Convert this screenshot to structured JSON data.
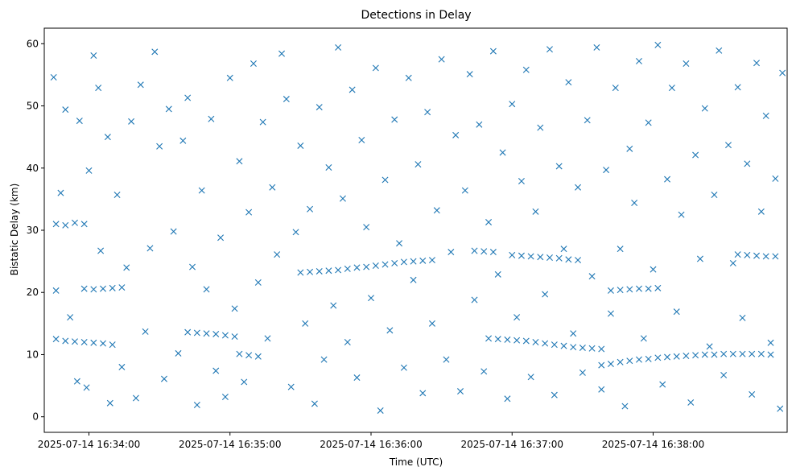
{
  "chart_data": {
    "type": "scatter",
    "title": "Detections in Delay",
    "xlabel": "Time (UTC)",
    "ylabel": "Bistatic Delay (km)",
    "x_ticks": [
      "2025-07-14 16:34:00",
      "2025-07-14 16:35:00",
      "2025-07-14 16:36:00",
      "2025-07-14 16:37:00",
      "2025-07-14 16:38:00"
    ],
    "x_range": [
      "2025-07-14 16:33:41",
      "2025-07-14 16:38:57"
    ],
    "y_ticks": [
      0,
      10,
      20,
      30,
      40,
      50,
      60
    ],
    "ylim": [
      -2.5,
      62.5
    ],
    "grid": false,
    "marker": "x",
    "color": "#1f77b4",
    "series": [
      {
        "points": [
          [
            "16:33:46",
            12.5
          ],
          [
            "16:33:50",
            12.2
          ],
          [
            "16:33:54",
            12.1
          ],
          [
            "16:33:58",
            12.0
          ],
          [
            "16:34:02",
            11.9
          ],
          [
            "16:34:06",
            11.8
          ],
          [
            "16:34:10",
            11.6
          ],
          [
            "16:34:42",
            13.6
          ],
          [
            "16:34:46",
            13.5
          ],
          [
            "16:34:50",
            13.4
          ],
          [
            "16:34:54",
            13.3
          ],
          [
            "16:34:58",
            13.1
          ],
          [
            "16:35:02",
            12.9
          ],
          [
            "16:35:04",
            10.1
          ],
          [
            "16:35:08",
            9.9
          ],
          [
            "16:35:12",
            9.7
          ],
          [
            "16:35:30",
            23.2
          ],
          [
            "16:35:34",
            23.3
          ],
          [
            "16:35:38",
            23.4
          ],
          [
            "16:35:42",
            23.5
          ],
          [
            "16:35:46",
            23.6
          ],
          [
            "16:35:50",
            23.8
          ],
          [
            "16:35:54",
            24.0
          ],
          [
            "16:35:58",
            24.1
          ],
          [
            "16:36:02",
            24.3
          ],
          [
            "16:36:06",
            24.5
          ],
          [
            "16:36:10",
            24.7
          ],
          [
            "16:36:14",
            24.9
          ],
          [
            "16:36:18",
            25.0
          ],
          [
            "16:36:22",
            25.1
          ],
          [
            "16:36:26",
            25.2
          ],
          [
            "16:36:44",
            26.7
          ],
          [
            "16:36:48",
            26.6
          ],
          [
            "16:36:52",
            26.5
          ],
          [
            "16:36:50",
            12.6
          ],
          [
            "16:36:54",
            12.5
          ],
          [
            "16:36:58",
            12.4
          ],
          [
            "16:37:02",
            12.3
          ],
          [
            "16:37:06",
            12.2
          ],
          [
            "16:37:10",
            12.0
          ],
          [
            "16:37:14",
            11.8
          ],
          [
            "16:37:18",
            11.6
          ],
          [
            "16:37:22",
            11.4
          ],
          [
            "16:37:26",
            11.2
          ],
          [
            "16:37:30",
            11.1
          ],
          [
            "16:37:34",
            11.0
          ],
          [
            "16:37:38",
            10.9
          ],
          [
            "16:37:00",
            26.0
          ],
          [
            "16:37:04",
            25.9
          ],
          [
            "16:37:08",
            25.8
          ],
          [
            "16:37:12",
            25.7
          ],
          [
            "16:37:16",
            25.6
          ],
          [
            "16:37:20",
            25.5
          ],
          [
            "16:37:24",
            25.3
          ],
          [
            "16:37:28",
            25.2
          ],
          [
            "16:37:38",
            8.3
          ],
          [
            "16:37:42",
            8.5
          ],
          [
            "16:37:46",
            8.8
          ],
          [
            "16:37:50",
            9.0
          ],
          [
            "16:37:54",
            9.2
          ],
          [
            "16:37:58",
            9.3
          ],
          [
            "16:38:02",
            9.5
          ],
          [
            "16:38:06",
            9.6
          ],
          [
            "16:38:10",
            9.7
          ],
          [
            "16:38:14",
            9.8
          ],
          [
            "16:38:18",
            9.9
          ],
          [
            "16:38:22",
            10.0
          ],
          [
            "16:38:26",
            10.0
          ],
          [
            "16:38:30",
            10.1
          ],
          [
            "16:38:34",
            10.1
          ],
          [
            "16:38:38",
            10.1
          ],
          [
            "16:38:42",
            10.1
          ],
          [
            "16:38:46",
            10.1
          ],
          [
            "16:38:50",
            10.0
          ],
          [
            "16:37:42",
            20.3
          ],
          [
            "16:37:46",
            20.4
          ],
          [
            "16:37:50",
            20.5
          ],
          [
            "16:37:54",
            20.6
          ],
          [
            "16:37:58",
            20.6
          ],
          [
            "16:38:02",
            20.7
          ],
          [
            "16:38:36",
            26.1
          ],
          [
            "16:38:40",
            26.0
          ],
          [
            "16:38:44",
            25.9
          ],
          [
            "16:38:48",
            25.8
          ],
          [
            "16:38:52",
            25.8
          ],
          [
            "16:33:46",
            20.3
          ],
          [
            "16:33:58",
            20.6
          ],
          [
            "16:34:02",
            20.5
          ],
          [
            "16:34:06",
            20.6
          ],
          [
            "16:34:10",
            20.7
          ],
          [
            "16:34:14",
            20.8
          ],
          [
            "16:33:46",
            31.0
          ],
          [
            "16:33:50",
            30.8
          ],
          [
            "16:33:54",
            31.2
          ],
          [
            "16:33:58",
            31.0
          ],
          [
            "16:33:45",
            54.6
          ],
          [
            "16:33:48",
            36.0
          ],
          [
            "16:33:50",
            49.4
          ],
          [
            "16:33:52",
            16.0
          ],
          [
            "16:33:55",
            5.7
          ],
          [
            "16:33:56",
            47.6
          ],
          [
            "16:33:59",
            4.7
          ],
          [
            "16:34:00",
            39.6
          ],
          [
            "16:34:02",
            58.1
          ],
          [
            "16:34:04",
            52.9
          ],
          [
            "16:34:05",
            26.7
          ],
          [
            "16:34:08",
            45.0
          ],
          [
            "16:34:09",
            2.2
          ],
          [
            "16:34:12",
            35.7
          ],
          [
            "16:34:14",
            8.0
          ],
          [
            "16:34:16",
            24.0
          ],
          [
            "16:34:18",
            47.5
          ],
          [
            "16:34:20",
            3.0
          ],
          [
            "16:34:22",
            53.4
          ],
          [
            "16:34:24",
            13.7
          ],
          [
            "16:34:26",
            27.1
          ],
          [
            "16:34:28",
            58.7
          ],
          [
            "16:34:30",
            43.5
          ],
          [
            "16:34:32",
            6.1
          ],
          [
            "16:34:34",
            49.5
          ],
          [
            "16:34:36",
            29.8
          ],
          [
            "16:34:38",
            10.2
          ],
          [
            "16:34:40",
            44.4
          ],
          [
            "16:34:42",
            51.3
          ],
          [
            "16:34:44",
            24.1
          ],
          [
            "16:34:46",
            1.9
          ],
          [
            "16:34:48",
            36.4
          ],
          [
            "16:34:50",
            20.5
          ],
          [
            "16:34:52",
            47.9
          ],
          [
            "16:34:54",
            7.4
          ],
          [
            "16:34:56",
            28.8
          ],
          [
            "16:34:58",
            3.2
          ],
          [
            "16:35:00",
            54.5
          ],
          [
            "16:35:02",
            17.4
          ],
          [
            "16:35:04",
            41.1
          ],
          [
            "16:35:06",
            5.6
          ],
          [
            "16:35:08",
            32.9
          ],
          [
            "16:35:10",
            56.8
          ],
          [
            "16:35:12",
            21.6
          ],
          [
            "16:35:14",
            47.4
          ],
          [
            "16:35:16",
            12.6
          ],
          [
            "16:35:18",
            36.9
          ],
          [
            "16:35:20",
            26.1
          ],
          [
            "16:35:22",
            58.4
          ],
          [
            "16:35:24",
            51.1
          ],
          [
            "16:35:26",
            4.8
          ],
          [
            "16:35:28",
            29.7
          ],
          [
            "16:35:30",
            43.6
          ],
          [
            "16:35:32",
            15.0
          ],
          [
            "16:35:34",
            33.4
          ],
          [
            "16:35:36",
            2.1
          ],
          [
            "16:35:38",
            49.8
          ],
          [
            "16:35:40",
            9.2
          ],
          [
            "16:35:42",
            40.1
          ],
          [
            "16:35:44",
            17.9
          ],
          [
            "16:35:46",
            59.4
          ],
          [
            "16:35:48",
            35.1
          ],
          [
            "16:35:50",
            12.0
          ],
          [
            "16:35:52",
            52.6
          ],
          [
            "16:35:54",
            6.3
          ],
          [
            "16:35:56",
            44.5
          ],
          [
            "16:35:58",
            30.5
          ],
          [
            "16:36:00",
            19.1
          ],
          [
            "16:36:02",
            56.1
          ],
          [
            "16:36:04",
            1.0
          ],
          [
            "16:36:06",
            38.1
          ],
          [
            "16:36:08",
            13.9
          ],
          [
            "16:36:10",
            47.8
          ],
          [
            "16:36:12",
            27.9
          ],
          [
            "16:36:14",
            7.9
          ],
          [
            "16:36:16",
            54.5
          ],
          [
            "16:36:18",
            22.0
          ],
          [
            "16:36:20",
            40.6
          ],
          [
            "16:36:22",
            3.8
          ],
          [
            "16:36:24",
            49.0
          ],
          [
            "16:36:26",
            15.0
          ],
          [
            "16:36:28",
            33.2
          ],
          [
            "16:36:30",
            57.5
          ],
          [
            "16:36:32",
            9.2
          ],
          [
            "16:36:34",
            26.5
          ],
          [
            "16:36:36",
            45.3
          ],
          [
            "16:36:38",
            4.1
          ],
          [
            "16:36:40",
            36.4
          ],
          [
            "16:36:42",
            55.1
          ],
          [
            "16:36:44",
            18.8
          ],
          [
            "16:36:46",
            47.0
          ],
          [
            "16:36:48",
            7.3
          ],
          [
            "16:36:50",
            31.3
          ],
          [
            "16:36:52",
            58.8
          ],
          [
            "16:36:54",
            22.9
          ],
          [
            "16:36:56",
            42.5
          ],
          [
            "16:36:58",
            2.9
          ],
          [
            "16:37:00",
            50.3
          ],
          [
            "16:37:02",
            16.0
          ],
          [
            "16:37:04",
            37.9
          ],
          [
            "16:37:06",
            55.8
          ],
          [
            "16:37:08",
            6.4
          ],
          [
            "16:37:10",
            33.0
          ],
          [
            "16:37:12",
            46.5
          ],
          [
            "16:37:14",
            19.7
          ],
          [
            "16:37:16",
            59.1
          ],
          [
            "16:37:18",
            3.5
          ],
          [
            "16:37:20",
            40.3
          ],
          [
            "16:37:22",
            27.0
          ],
          [
            "16:37:24",
            53.8
          ],
          [
            "16:37:26",
            13.4
          ],
          [
            "16:37:28",
            36.9
          ],
          [
            "16:37:30",
            7.1
          ],
          [
            "16:37:32",
            47.7
          ],
          [
            "16:37:34",
            22.6
          ],
          [
            "16:37:36",
            59.4
          ],
          [
            "16:37:38",
            4.4
          ],
          [
            "16:37:40",
            39.7
          ],
          [
            "16:37:42",
            16.6
          ],
          [
            "16:37:44",
            52.9
          ],
          [
            "16:37:46",
            27.0
          ],
          [
            "16:37:48",
            1.7
          ],
          [
            "16:37:50",
            43.1
          ],
          [
            "16:37:52",
            34.4
          ],
          [
            "16:37:54",
            57.2
          ],
          [
            "16:37:56",
            12.6
          ],
          [
            "16:37:58",
            47.3
          ],
          [
            "16:38:00",
            23.7
          ],
          [
            "16:38:02",
            59.8
          ],
          [
            "16:38:04",
            5.2
          ],
          [
            "16:38:06",
            38.2
          ],
          [
            "16:38:08",
            52.9
          ],
          [
            "16:38:10",
            16.9
          ],
          [
            "16:38:12",
            32.5
          ],
          [
            "16:38:14",
            56.8
          ],
          [
            "16:38:16",
            2.3
          ],
          [
            "16:38:18",
            42.1
          ],
          [
            "16:38:20",
            25.4
          ],
          [
            "16:38:22",
            49.6
          ],
          [
            "16:38:24",
            11.3
          ],
          [
            "16:38:26",
            35.7
          ],
          [
            "16:38:28",
            58.9
          ],
          [
            "16:38:30",
            6.7
          ],
          [
            "16:38:32",
            43.7
          ],
          [
            "16:38:34",
            24.7
          ],
          [
            "16:38:36",
            53.0
          ],
          [
            "16:38:38",
            15.9
          ],
          [
            "16:38:40",
            40.7
          ],
          [
            "16:38:42",
            3.6
          ],
          [
            "16:38:44",
            56.9
          ],
          [
            "16:38:46",
            33.0
          ],
          [
            "16:38:48",
            48.4
          ],
          [
            "16:38:50",
            11.9
          ],
          [
            "16:38:52",
            38.3
          ],
          [
            "16:38:54",
            1.3
          ],
          [
            "16:38:55",
            55.3
          ]
        ]
      }
    ]
  }
}
